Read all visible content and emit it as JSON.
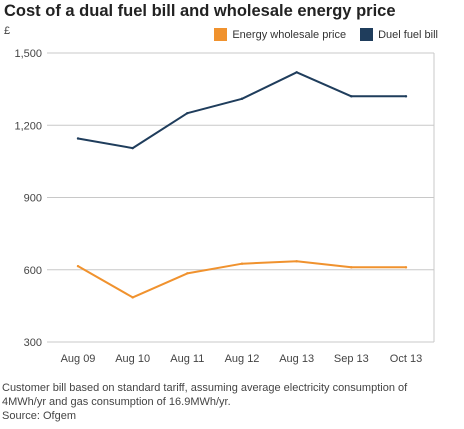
{
  "title": "Cost of a dual fuel bill and wholesale energy price",
  "unit_label": "£",
  "note": "Customer bill based on standard tariff, assuming average electricity consumption of 4MWh/yr and gas consumption of 16.9MWh/yr.",
  "source": "Source: Ofgem",
  "chart_data": {
    "type": "line",
    "title": "Cost of a dual fuel bill and wholesale energy price",
    "ylabel": "£",
    "categories": [
      "Aug 09",
      "Aug 10",
      "Aug 11",
      "Aug 12",
      "Aug 13",
      "Sep 13",
      "Oct 13"
    ],
    "yticks": [
      "300",
      "600",
      "900",
      "1,200",
      "1,500"
    ],
    "ylim": [
      300,
      1500
    ],
    "grid": true,
    "legend_position": "top-right",
    "series": [
      {
        "name": "Energy wholesale price",
        "color": "#f0922e",
        "values": [
          615,
          485,
          585,
          625,
          635,
          610,
          610
        ]
      },
      {
        "name": "Duel fuel bill",
        "color": "#1f3d5c",
        "values": [
          1145,
          1105,
          1250,
          1310,
          1420,
          1320,
          1320
        ]
      }
    ]
  }
}
